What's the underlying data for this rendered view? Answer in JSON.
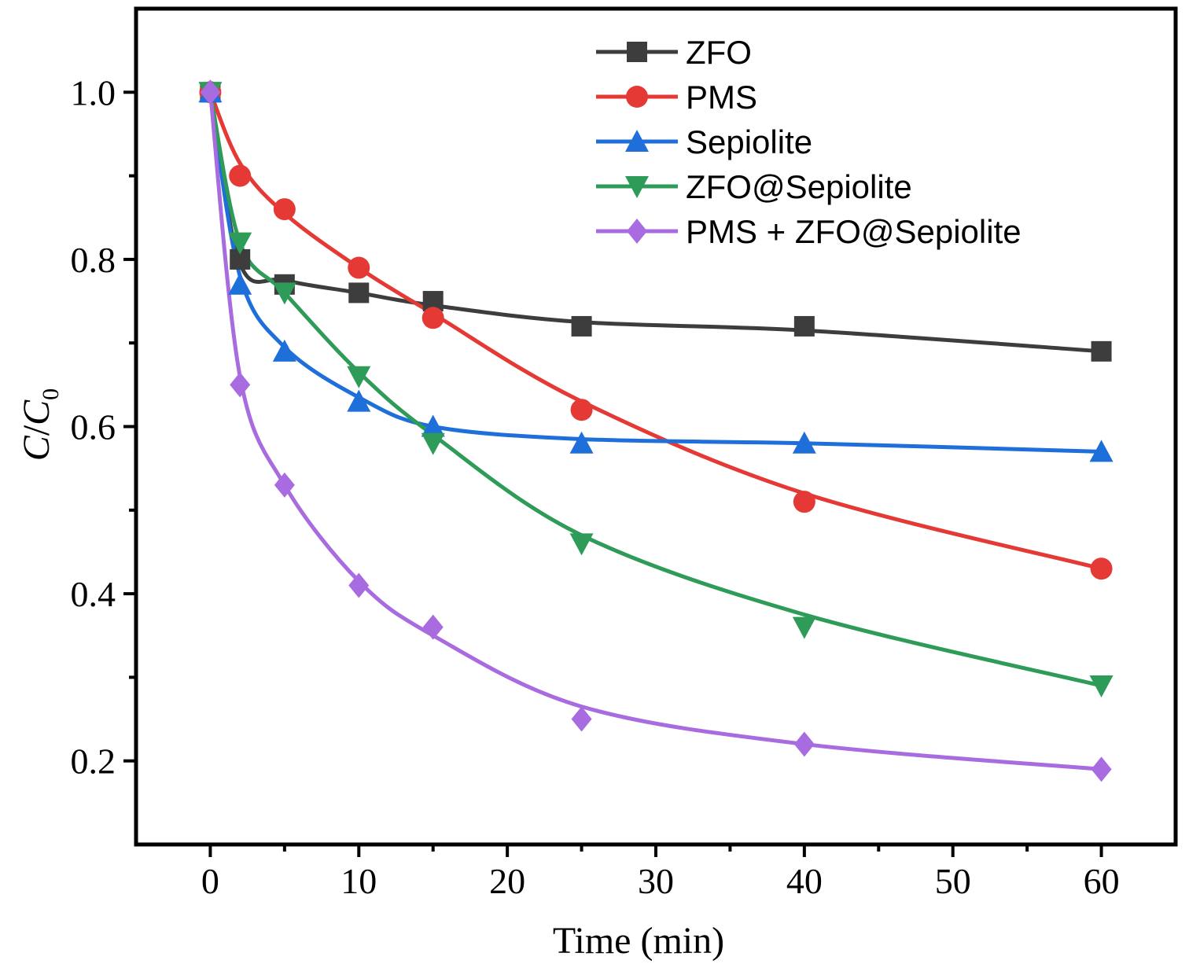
{
  "chart_data": {
    "type": "line",
    "title": "",
    "xlabel": "Time (min)",
    "ylabel_main": "C",
    "ylabel_sep": "/",
    "ylabel_denom": "C",
    "ylabel_sub": "0",
    "xlim": [
      -5,
      65
    ],
    "ylim": [
      0.1,
      1.1
    ],
    "xticks": [
      0,
      10,
      20,
      30,
      40,
      50,
      60
    ],
    "xtick_labels": [
      "0",
      "10",
      "20",
      "30",
      "40",
      "50",
      "60"
    ],
    "yticks": [
      0.2,
      0.4,
      0.6,
      0.8,
      1.0
    ],
    "ytick_labels": [
      "0.2",
      "0.4",
      "0.6",
      "0.8",
      "1.0"
    ],
    "x": [
      0,
      2,
      5,
      10,
      15,
      25,
      40,
      60
    ],
    "grid": false,
    "legend_position": "top-right",
    "series": [
      {
        "name": "ZFO",
        "color": "#3d3d3d",
        "marker": "square",
        "values": [
          1.0,
          0.8,
          0.77,
          0.76,
          0.75,
          0.72,
          0.72,
          0.69
        ],
        "fit": [
          1.0,
          0.795,
          0.775,
          0.76,
          0.745,
          0.725,
          0.715,
          0.69
        ]
      },
      {
        "name": "PMS",
        "color": "#e53935",
        "marker": "circle",
        "values": [
          1.0,
          0.9,
          0.86,
          0.79,
          0.73,
          0.62,
          0.51,
          0.43
        ],
        "fit": [
          1.0,
          0.915,
          0.855,
          0.79,
          0.735,
          0.63,
          0.52,
          0.43
        ]
      },
      {
        "name": "Sepiolite",
        "color": "#1e6fd9",
        "marker": "triangle-up",
        "values": [
          1.0,
          0.77,
          0.69,
          0.63,
          0.6,
          0.58,
          0.58,
          0.57
        ],
        "fit": [
          1.0,
          0.78,
          0.695,
          0.635,
          0.6,
          0.585,
          0.58,
          0.57
        ]
      },
      {
        "name": "ZFO@Sepiolite",
        "color": "#2e9b58",
        "marker": "triangle-down",
        "values": [
          1.0,
          0.82,
          0.76,
          0.66,
          0.58,
          0.46,
          0.36,
          0.29
        ],
        "fit": [
          1.0,
          0.82,
          0.76,
          0.665,
          0.59,
          0.47,
          0.375,
          0.29
        ]
      },
      {
        "name": "PMS + ZFO@Sepiolite",
        "color": "#a86be0",
        "marker": "diamond",
        "values": [
          1.0,
          0.65,
          0.53,
          0.41,
          0.36,
          0.25,
          0.22,
          0.19
        ],
        "fit": [
          1.0,
          0.66,
          0.53,
          0.415,
          0.35,
          0.265,
          0.22,
          0.19
        ]
      }
    ]
  }
}
